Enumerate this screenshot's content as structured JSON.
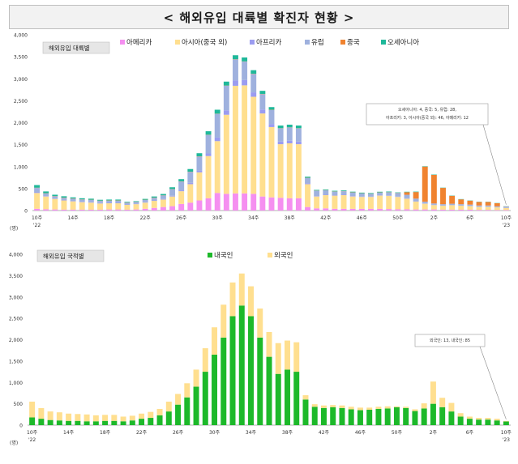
{
  "page_title": "< 해외유입 대륙별 확진자 현황 >",
  "chart_data": [
    {
      "type": "bar",
      "stacked": true,
      "title": "해외유입 대륙별",
      "ylabel": "(명)",
      "ylim": [
        0,
        4000
      ],
      "yticks": [
        0,
        500,
        1000,
        1500,
        2000,
        2500,
        3000,
        3500,
        4000
      ],
      "ytick_labels": [
        "0",
        "500",
        "1,000",
        "1,500",
        "2,000",
        "2,500",
        "3,000",
        "3,500",
        "4,000"
      ],
      "categories": [
        "10",
        "11",
        "12",
        "13",
        "14",
        "15",
        "16",
        "17",
        "18",
        "19",
        "20",
        "21",
        "22",
        "23",
        "24",
        "25",
        "26",
        "27",
        "28",
        "29",
        "30",
        "31",
        "32",
        "33",
        "34",
        "35",
        "36",
        "37",
        "38",
        "39",
        "40",
        "41",
        "42",
        "43",
        "44",
        "45",
        "46",
        "47",
        "48",
        "49",
        "50",
        "51",
        "52",
        "1",
        "2",
        "3",
        "4",
        "5",
        "6",
        "7",
        "8",
        "9",
        "10"
      ],
      "xtick_labels": [
        {
          "index": 0,
          "label": "10주",
          "sub": "'22"
        },
        {
          "index": 4,
          "label": "14주"
        },
        {
          "index": 8,
          "label": "18주"
        },
        {
          "index": 12,
          "label": "22주"
        },
        {
          "index": 16,
          "label": "26주"
        },
        {
          "index": 20,
          "label": "30주"
        },
        {
          "index": 24,
          "label": "34주"
        },
        {
          "index": 28,
          "label": "38주"
        },
        {
          "index": 32,
          "label": "42주"
        },
        {
          "index": 36,
          "label": "46주"
        },
        {
          "index": 40,
          "label": "50주"
        },
        {
          "index": 44,
          "label": "2주"
        },
        {
          "index": 48,
          "label": "6주"
        },
        {
          "index": 52,
          "label": "10주",
          "sub": "'23"
        }
      ],
      "legend_position": "top",
      "series": [
        {
          "name": "아메리카",
          "color": "#f58ff0",
          "values": [
            40,
            30,
            25,
            20,
            20,
            20,
            20,
            20,
            25,
            25,
            20,
            25,
            40,
            60,
            80,
            100,
            150,
            180,
            230,
            280,
            400,
            380,
            390,
            390,
            380,
            320,
            300,
            290,
            280,
            280,
            80,
            50,
            50,
            40,
            40,
            40,
            40,
            40,
            40,
            35,
            30,
            30,
            25,
            25,
            25,
            20,
            20,
            20,
            20,
            15,
            15,
            12,
            12
          ]
        },
        {
          "name": "아시아(중국 외)",
          "color": "#ffdf8f",
          "values": [
            360,
            290,
            240,
            210,
            190,
            170,
            160,
            140,
            140,
            140,
            110,
            120,
            140,
            160,
            170,
            220,
            290,
            420,
            640,
            960,
            1180,
            1800,
            2450,
            2460,
            2210,
            1890,
            1600,
            1220,
            1250,
            1230,
            520,
            270,
            300,
            300,
            310,
            280,
            270,
            270,
            300,
            300,
            280,
            240,
            180,
            130,
            100,
            90,
            100,
            90,
            80,
            70,
            70,
            60,
            46
          ]
        },
        {
          "name": "아프리카",
          "color": "#9b9cf0",
          "values": [
            15,
            10,
            10,
            10,
            10,
            10,
            10,
            10,
            10,
            10,
            8,
            8,
            10,
            10,
            12,
            15,
            20,
            30,
            40,
            60,
            80,
            100,
            120,
            120,
            100,
            90,
            70,
            60,
            60,
            60,
            20,
            10,
            10,
            10,
            10,
            10,
            8,
            8,
            8,
            8,
            8,
            8,
            6,
            6,
            6,
            5,
            5,
            5,
            5,
            5,
            5,
            4,
            3
          ]
        },
        {
          "name": "유럽",
          "color": "#9fb1de",
          "values": [
            100,
            60,
            50,
            50,
            50,
            50,
            50,
            50,
            50,
            50,
            40,
            40,
            50,
            60,
            80,
            150,
            200,
            250,
            320,
            420,
            540,
            560,
            480,
            420,
            420,
            350,
            320,
            300,
            300,
            300,
            120,
            120,
            100,
            80,
            80,
            80,
            70,
            60,
            60,
            70,
            80,
            80,
            60,
            40,
            30,
            30,
            30,
            30,
            30,
            25,
            25,
            20,
            28
          ]
        },
        {
          "name": "중국",
          "color": "#f08330",
          "values": [
            5,
            5,
            5,
            5,
            5,
            5,
            5,
            5,
            5,
            5,
            5,
            5,
            5,
            5,
            5,
            5,
            5,
            5,
            5,
            5,
            5,
            5,
            5,
            5,
            5,
            5,
            5,
            5,
            5,
            5,
            5,
            5,
            5,
            5,
            5,
            5,
            5,
            5,
            5,
            5,
            5,
            60,
            150,
            800,
            650,
            370,
            180,
            110,
            90,
            80,
            80,
            70,
            5
          ]
        },
        {
          "name": "오세아니아",
          "color": "#1fb89a",
          "values": [
            60,
            40,
            30,
            30,
            25,
            25,
            25,
            20,
            20,
            20,
            15,
            15,
            20,
            25,
            30,
            40,
            50,
            60,
            70,
            80,
            90,
            90,
            90,
            90,
            80,
            70,
            60,
            60,
            60,
            60,
            25,
            15,
            15,
            15,
            15,
            15,
            15,
            15,
            15,
            15,
            10,
            10,
            10,
            8,
            8,
            6,
            6,
            6,
            5,
            5,
            5,
            5,
            4
          ]
        }
      ],
      "annotation": {
        "lines": [
          "오세아니아: 4, 중국: 5, 유럽: 28,",
          "아프리카: 3, 아시아(중국 외): 46, 아메리카: 12"
        ],
        "target_index": 52
      }
    },
    {
      "type": "bar",
      "stacked": true,
      "title": "해외유입 국적별",
      "ylabel": "(명)",
      "ylim": [
        0,
        4000
      ],
      "yticks": [
        0,
        500,
        1000,
        1500,
        2000,
        2500,
        3000,
        3500,
        4000
      ],
      "ytick_labels": [
        "0",
        "500",
        "1,000",
        "1,500",
        "2,000",
        "2,500",
        "3,000",
        "3,500",
        "4,000"
      ],
      "categories": [
        "10",
        "11",
        "12",
        "13",
        "14",
        "15",
        "16",
        "17",
        "18",
        "19",
        "20",
        "21",
        "22",
        "23",
        "24",
        "25",
        "26",
        "27",
        "28",
        "29",
        "30",
        "31",
        "32",
        "33",
        "34",
        "35",
        "36",
        "37",
        "38",
        "39",
        "40",
        "41",
        "42",
        "43",
        "44",
        "45",
        "46",
        "47",
        "48",
        "49",
        "50",
        "51",
        "52",
        "1",
        "2",
        "3",
        "4",
        "5",
        "6",
        "7",
        "8",
        "9",
        "10"
      ],
      "xtick_labels": [
        {
          "index": 0,
          "label": "10주",
          "sub": "'22"
        },
        {
          "index": 4,
          "label": "14주"
        },
        {
          "index": 8,
          "label": "18주"
        },
        {
          "index": 12,
          "label": "22주"
        },
        {
          "index": 16,
          "label": "26주"
        },
        {
          "index": 20,
          "label": "30주"
        },
        {
          "index": 24,
          "label": "34주"
        },
        {
          "index": 28,
          "label": "38주"
        },
        {
          "index": 32,
          "label": "42주"
        },
        {
          "index": 36,
          "label": "46주"
        },
        {
          "index": 40,
          "label": "50주"
        },
        {
          "index": 44,
          "label": "2주"
        },
        {
          "index": 48,
          "label": "6주"
        },
        {
          "index": 52,
          "label": "10주",
          "sub": "'23"
        }
      ],
      "legend_position": "top",
      "series": [
        {
          "name": "내국인",
          "color": "#1db92a",
          "values": [
            180,
            150,
            120,
            110,
            100,
            100,
            90,
            90,
            100,
            100,
            90,
            110,
            150,
            170,
            230,
            320,
            480,
            650,
            900,
            1250,
            1650,
            2050,
            2550,
            2800,
            2550,
            2050,
            1600,
            1200,
            1300,
            1250,
            600,
            430,
            400,
            420,
            400,
            370,
            350,
            360,
            380,
            390,
            420,
            400,
            330,
            390,
            500,
            420,
            320,
            200,
            150,
            130,
            130,
            110,
            85
          ]
        },
        {
          "name": "외국인",
          "color": "#ffdf8f",
          "values": [
            370,
            250,
            200,
            190,
            170,
            160,
            160,
            140,
            140,
            140,
            110,
            110,
            120,
            140,
            150,
            230,
            250,
            330,
            400,
            550,
            640,
            770,
            790,
            750,
            700,
            680,
            580,
            720,
            680,
            690,
            100,
            60,
            60,
            50,
            60,
            60,
            60,
            50,
            50,
            50,
            20,
            30,
            40,
            120,
            520,
            220,
            200,
            80,
            50,
            40,
            40,
            40,
            13
          ]
        }
      ],
      "annotation": {
        "lines": [
          "외국인: 13, 내국인: 85"
        ],
        "target_index": 52
      }
    }
  ]
}
